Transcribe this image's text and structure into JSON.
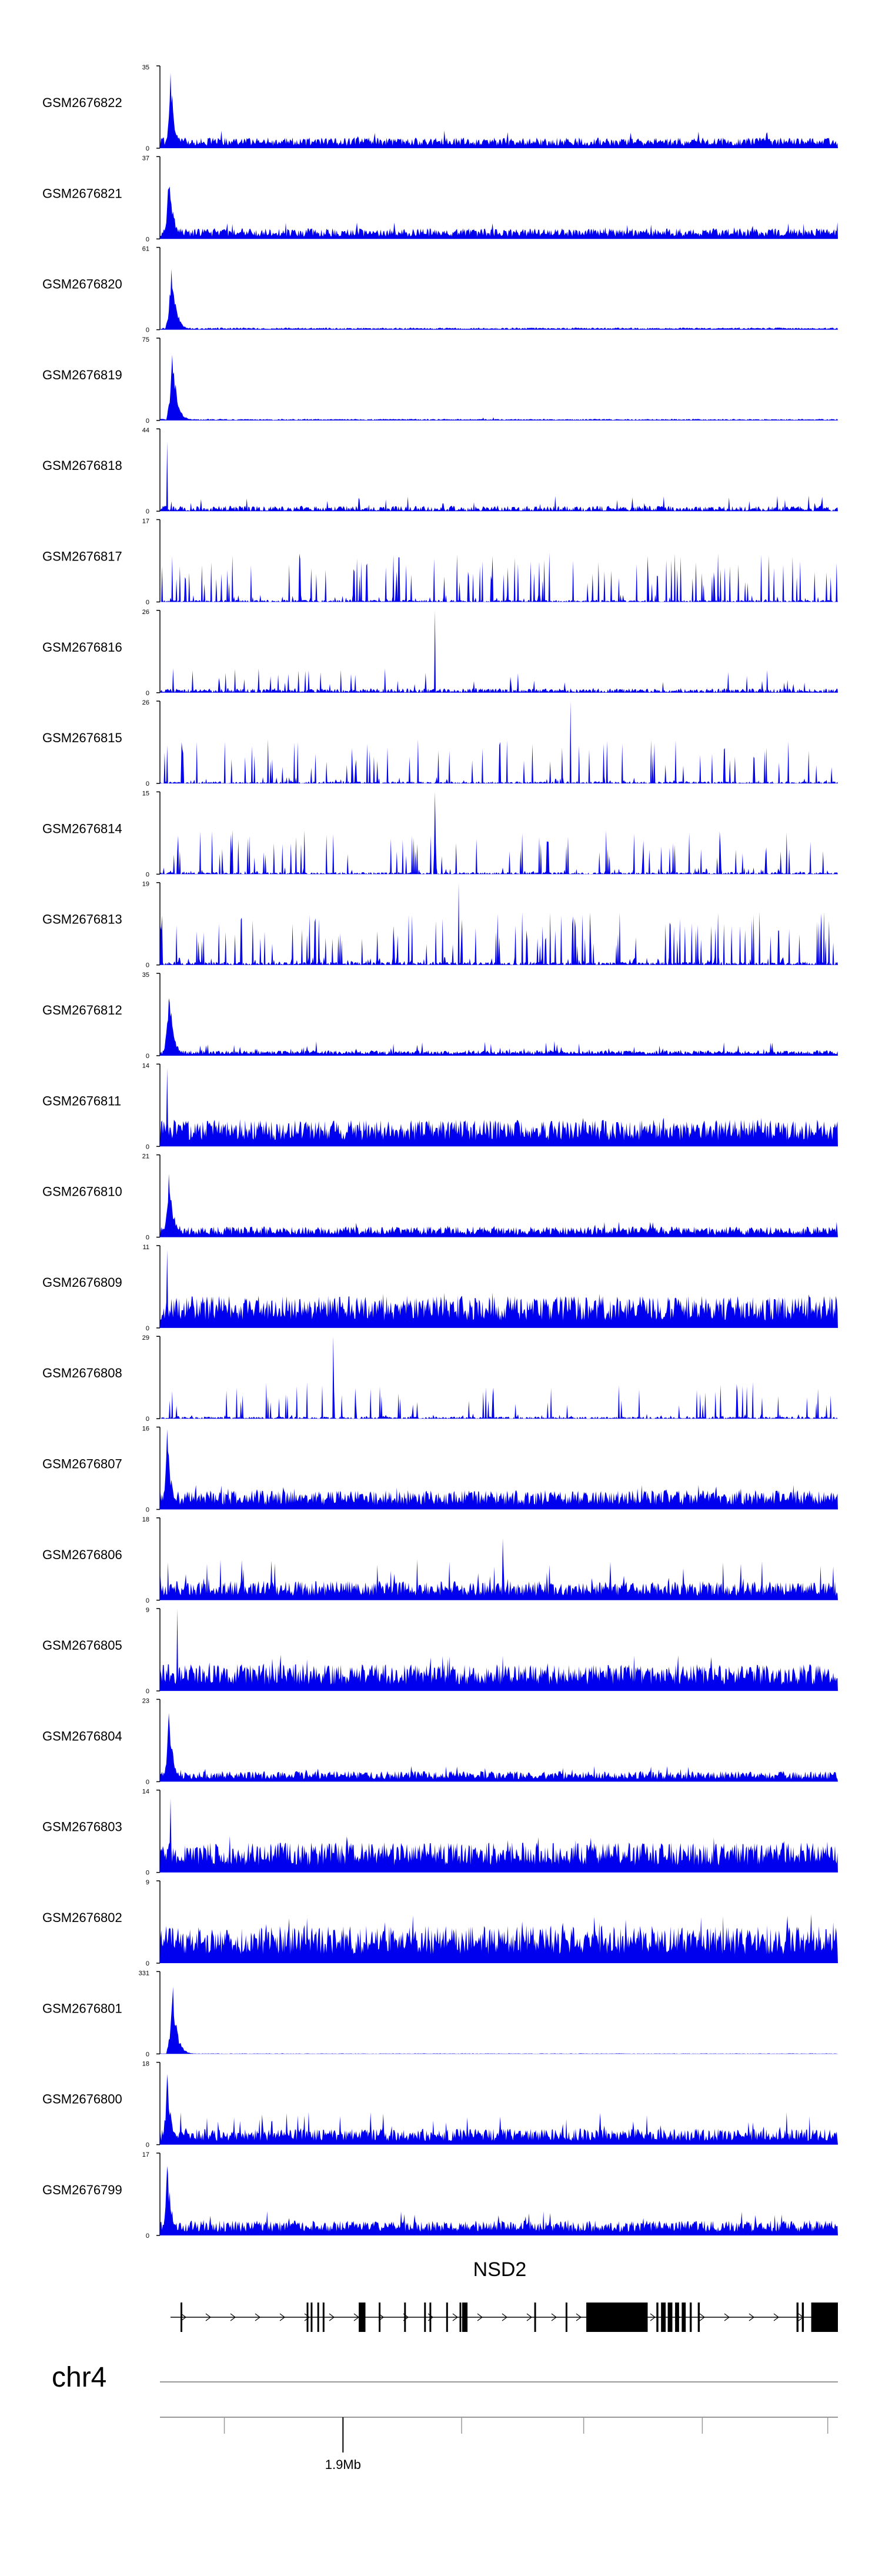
{
  "colors": {
    "track_fill": "#0000ee",
    "axis": "#000000",
    "gene": "#000000",
    "scale_line": "#999999"
  },
  "chart_data": {
    "type": "area",
    "title": "",
    "chromosome": "chr4",
    "x_tick_label": "1.9Mb",
    "gene": {
      "name": "NSD2",
      "strand": "+",
      "exons": [
        {
          "start": 0.015,
          "end": 0.016,
          "coding": true
        },
        {
          "start": 0.204,
          "end": 0.206,
          "coding": true
        },
        {
          "start": 0.21,
          "end": 0.212,
          "coding": true
        },
        {
          "start": 0.22,
          "end": 0.222,
          "coding": true
        },
        {
          "start": 0.228,
          "end": 0.23,
          "coding": true
        },
        {
          "start": 0.282,
          "end": 0.292,
          "coding": true
        },
        {
          "start": 0.312,
          "end": 0.314,
          "coding": true
        },
        {
          "start": 0.35,
          "end": 0.352,
          "coding": true
        },
        {
          "start": 0.38,
          "end": 0.382,
          "coding": true
        },
        {
          "start": 0.388,
          "end": 0.39,
          "coding": true
        },
        {
          "start": 0.413,
          "end": 0.415,
          "coding": true
        },
        {
          "start": 0.433,
          "end": 0.435,
          "coding": true
        },
        {
          "start": 0.437,
          "end": 0.445,
          "coding": true
        },
        {
          "start": 0.545,
          "end": 0.547,
          "coding": true
        },
        {
          "start": 0.592,
          "end": 0.594,
          "coding": true
        },
        {
          "start": 0.623,
          "end": 0.715,
          "coding": true
        },
        {
          "start": 0.728,
          "end": 0.731,
          "coding": true
        },
        {
          "start": 0.735,
          "end": 0.742,
          "coding": true
        },
        {
          "start": 0.745,
          "end": 0.752,
          "coding": true
        },
        {
          "start": 0.756,
          "end": 0.762,
          "coding": true
        },
        {
          "start": 0.766,
          "end": 0.772,
          "coding": true
        },
        {
          "start": 0.778,
          "end": 0.781,
          "coding": true
        },
        {
          "start": 0.79,
          "end": 0.793,
          "coding": true
        },
        {
          "start": 0.938,
          "end": 0.941,
          "coding": true
        },
        {
          "start": 0.946,
          "end": 0.949,
          "coding": true
        },
        {
          "start": 0.96,
          "end": 1.0,
          "coding": true
        }
      ]
    },
    "x_tick_positions": [
      0.095,
      0.27,
      0.445,
      0.625,
      0.8,
      0.985
    ],
    "x_tick_label_index": 1,
    "series": [
      {
        "name": "GSM2676822",
        "ymax": "35",
        "ymin": "0",
        "profile": "early",
        "spike": [
          0.015,
          1.0
        ],
        "level": 0.1,
        "var": 0.22,
        "peak_rate": 0.02,
        "seed": 22
      },
      {
        "name": "GSM2676821",
        "ymax": "37",
        "ymin": "0",
        "profile": "early",
        "spike": [
          0.013,
          1.0
        ],
        "level": 0.1,
        "var": 0.22,
        "peak_rate": 0.03,
        "seed": 21
      },
      {
        "name": "GSM2676820",
        "ymax": "61",
        "ymin": "0",
        "profile": "early",
        "spike": [
          0.016,
          1.0
        ],
        "level": 0.02,
        "var": 0.05,
        "peak_rate": 0.005,
        "seed": 20
      },
      {
        "name": "GSM2676819",
        "ymax": "75",
        "ymin": "0",
        "profile": "early",
        "spike": [
          0.018,
          1.0
        ],
        "level": 0.015,
        "var": 0.04,
        "peak_rate": 0.003,
        "seed": 19
      },
      {
        "name": "GSM2676818",
        "ymax": "44",
        "ymin": "0",
        "profile": "sparse",
        "spike": [
          0.01,
          0.85
        ],
        "level": 0.05,
        "var": 0.2,
        "peak_rate": 0.05,
        "seed": 18
      },
      {
        "name": "GSM2676817",
        "ymax": "17",
        "ymin": "0",
        "profile": "peaky",
        "spike": [
          0.0,
          0.0
        ],
        "level": 0.02,
        "var": 0.6,
        "peak_rate": 0.2,
        "seed": 17
      },
      {
        "name": "GSM2676816",
        "ymax": "26",
        "ymin": "0",
        "profile": "sparse",
        "spike": [
          0.405,
          1.0
        ],
        "level": 0.04,
        "var": 0.3,
        "peak_rate": 0.08,
        "seed": 16
      },
      {
        "name": "GSM2676815",
        "ymax": "26",
        "ymin": "0",
        "profile": "peaky",
        "spike": [
          0.605,
          1.0
        ],
        "level": 0.02,
        "var": 0.55,
        "peak_rate": 0.12,
        "seed": 15
      },
      {
        "name": "GSM2676814",
        "ymax": "15",
        "ymin": "0",
        "profile": "peaky",
        "spike": [
          0.405,
          1.0
        ],
        "level": 0.02,
        "var": 0.55,
        "peak_rate": 0.15,
        "seed": 14
      },
      {
        "name": "GSM2676813",
        "ymax": "19",
        "ymin": "0",
        "profile": "peaky",
        "spike": [
          0.44,
          1.0
        ],
        "level": 0.03,
        "var": 0.65,
        "peak_rate": 0.2,
        "seed": 13
      },
      {
        "name": "GSM2676812",
        "ymax": "35",
        "ymin": "0",
        "profile": "early",
        "spike": [
          0.013,
          1.0
        ],
        "level": 0.05,
        "var": 0.18,
        "peak_rate": 0.05,
        "seed": 12
      },
      {
        "name": "GSM2676811",
        "ymax": "14",
        "ymin": "0",
        "profile": "dense",
        "spike": [
          0.01,
          0.95
        ],
        "level": 0.25,
        "var": 0.35,
        "peak_rate": 0.05,
        "seed": 11
      },
      {
        "name": "GSM2676810",
        "ymax": "21",
        "ymin": "0",
        "profile": "early",
        "spike": [
          0.012,
          1.0
        ],
        "level": 0.1,
        "var": 0.2,
        "peak_rate": 0.02,
        "seed": 10
      },
      {
        "name": "GSM2676809",
        "ymax": "11",
        "ymin": "0",
        "profile": "dense",
        "spike": [
          0.01,
          0.95
        ],
        "level": 0.3,
        "var": 0.45,
        "peak_rate": 0.05,
        "seed": 9
      },
      {
        "name": "GSM2676808",
        "ymax": "29",
        "ymin": "0",
        "profile": "peaky",
        "spike": [
          0.255,
          1.0
        ],
        "level": 0.02,
        "var": 0.45,
        "peak_rate": 0.12,
        "seed": 8
      },
      {
        "name": "GSM2676807",
        "ymax": "16",
        "ymin": "0",
        "profile": "early",
        "spike": [
          0.01,
          1.0
        ],
        "level": 0.18,
        "var": 0.3,
        "peak_rate": 0.04,
        "seed": 7
      },
      {
        "name": "GSM2676806",
        "ymax": "18",
        "ymin": "0",
        "profile": "dense",
        "spike": [
          0.505,
          0.75
        ],
        "level": 0.18,
        "var": 0.5,
        "peak_rate": 0.06,
        "seed": 6
      },
      {
        "name": "GSM2676805",
        "ymax": "9",
        "ymin": "0",
        "profile": "dense",
        "spike": [
          0.025,
          1.0
        ],
        "level": 0.25,
        "var": 0.45,
        "peak_rate": 0.05,
        "seed": 5
      },
      {
        "name": "GSM2676804",
        "ymax": "23",
        "ymin": "0",
        "profile": "early",
        "spike": [
          0.012,
          1.0
        ],
        "level": 0.1,
        "var": 0.2,
        "peak_rate": 0.03,
        "seed": 4
      },
      {
        "name": "GSM2676803",
        "ymax": "14",
        "ymin": "0",
        "profile": "dense",
        "spike": [
          0.015,
          0.9
        ],
        "level": 0.28,
        "var": 0.45,
        "peak_rate": 0.05,
        "seed": 3
      },
      {
        "name": "GSM2676802",
        "ymax": "9",
        "ymin": "0",
        "profile": "dense",
        "spike": [
          0.0,
          0.0
        ],
        "level": 0.35,
        "var": 0.6,
        "peak_rate": 0.05,
        "seed": 2
      },
      {
        "name": "GSM2676801",
        "ymax": "331",
        "ymin": "0",
        "profile": "early",
        "spike": [
          0.017,
          1.0
        ],
        "level": 0.005,
        "var": 0.01,
        "peak_rate": 0.002,
        "seed": 1
      },
      {
        "name": "GSM2676800",
        "ymax": "18",
        "ymin": "0",
        "profile": "early",
        "spike": [
          0.01,
          1.0
        ],
        "level": 0.15,
        "var": 0.4,
        "peak_rate": 0.05,
        "seed": 30
      },
      {
        "name": "GSM2676799",
        "ymax": "17",
        "ymin": "0",
        "profile": "early",
        "spike": [
          0.01,
          1.0
        ],
        "level": 0.14,
        "var": 0.3,
        "peak_rate": 0.04,
        "seed": 31
      }
    ]
  }
}
